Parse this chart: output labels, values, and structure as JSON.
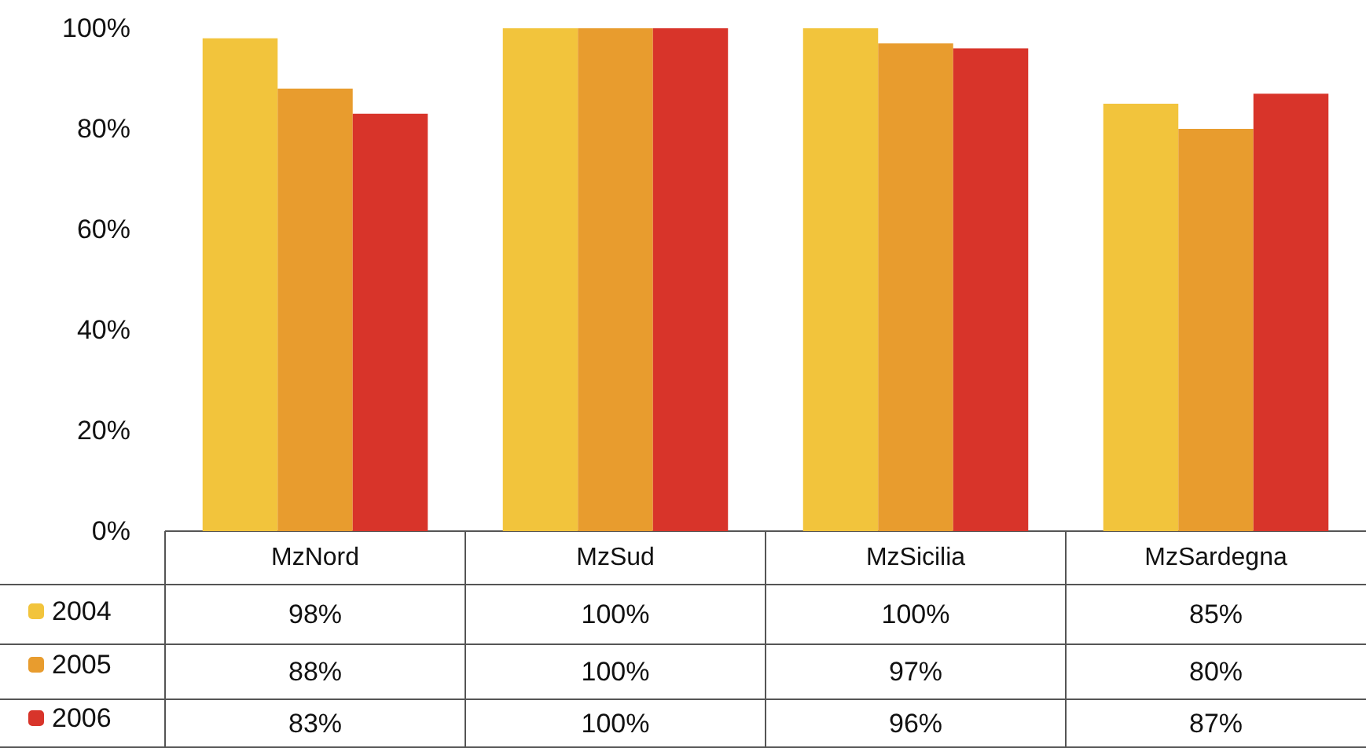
{
  "chart_data": {
    "type": "bar",
    "categories": [
      "MzNord",
      "MzSud",
      "MzSicilia",
      "MzSardegna"
    ],
    "series": [
      {
        "name": "2004",
        "color": "#f2c43c",
        "values": [
          98,
          100,
          100,
          85
        ],
        "value_labels": [
          "98%",
          "100%",
          "100%",
          "85%"
        ]
      },
      {
        "name": "2005",
        "color": "#e89c2e",
        "values": [
          88,
          100,
          97,
          80
        ],
        "value_labels": [
          "88%",
          "100%",
          "97%",
          "80%"
        ]
      },
      {
        "name": "2006",
        "color": "#d8342a",
        "values": [
          83,
          100,
          96,
          87
        ],
        "value_labels": [
          "83%",
          "100%",
          "96%",
          "87%"
        ]
      }
    ],
    "ylim": [
      0,
      100
    ],
    "yticks": [
      {
        "value": 0,
        "label": "0%"
      },
      {
        "value": 20,
        "label": "20%"
      },
      {
        "value": 40,
        "label": "40%"
      },
      {
        "value": 60,
        "label": "60%"
      },
      {
        "value": 80,
        "label": "80%"
      },
      {
        "value": 100,
        "label": "100%"
      }
    ],
    "grid": false,
    "legend": "bottom left"
  }
}
